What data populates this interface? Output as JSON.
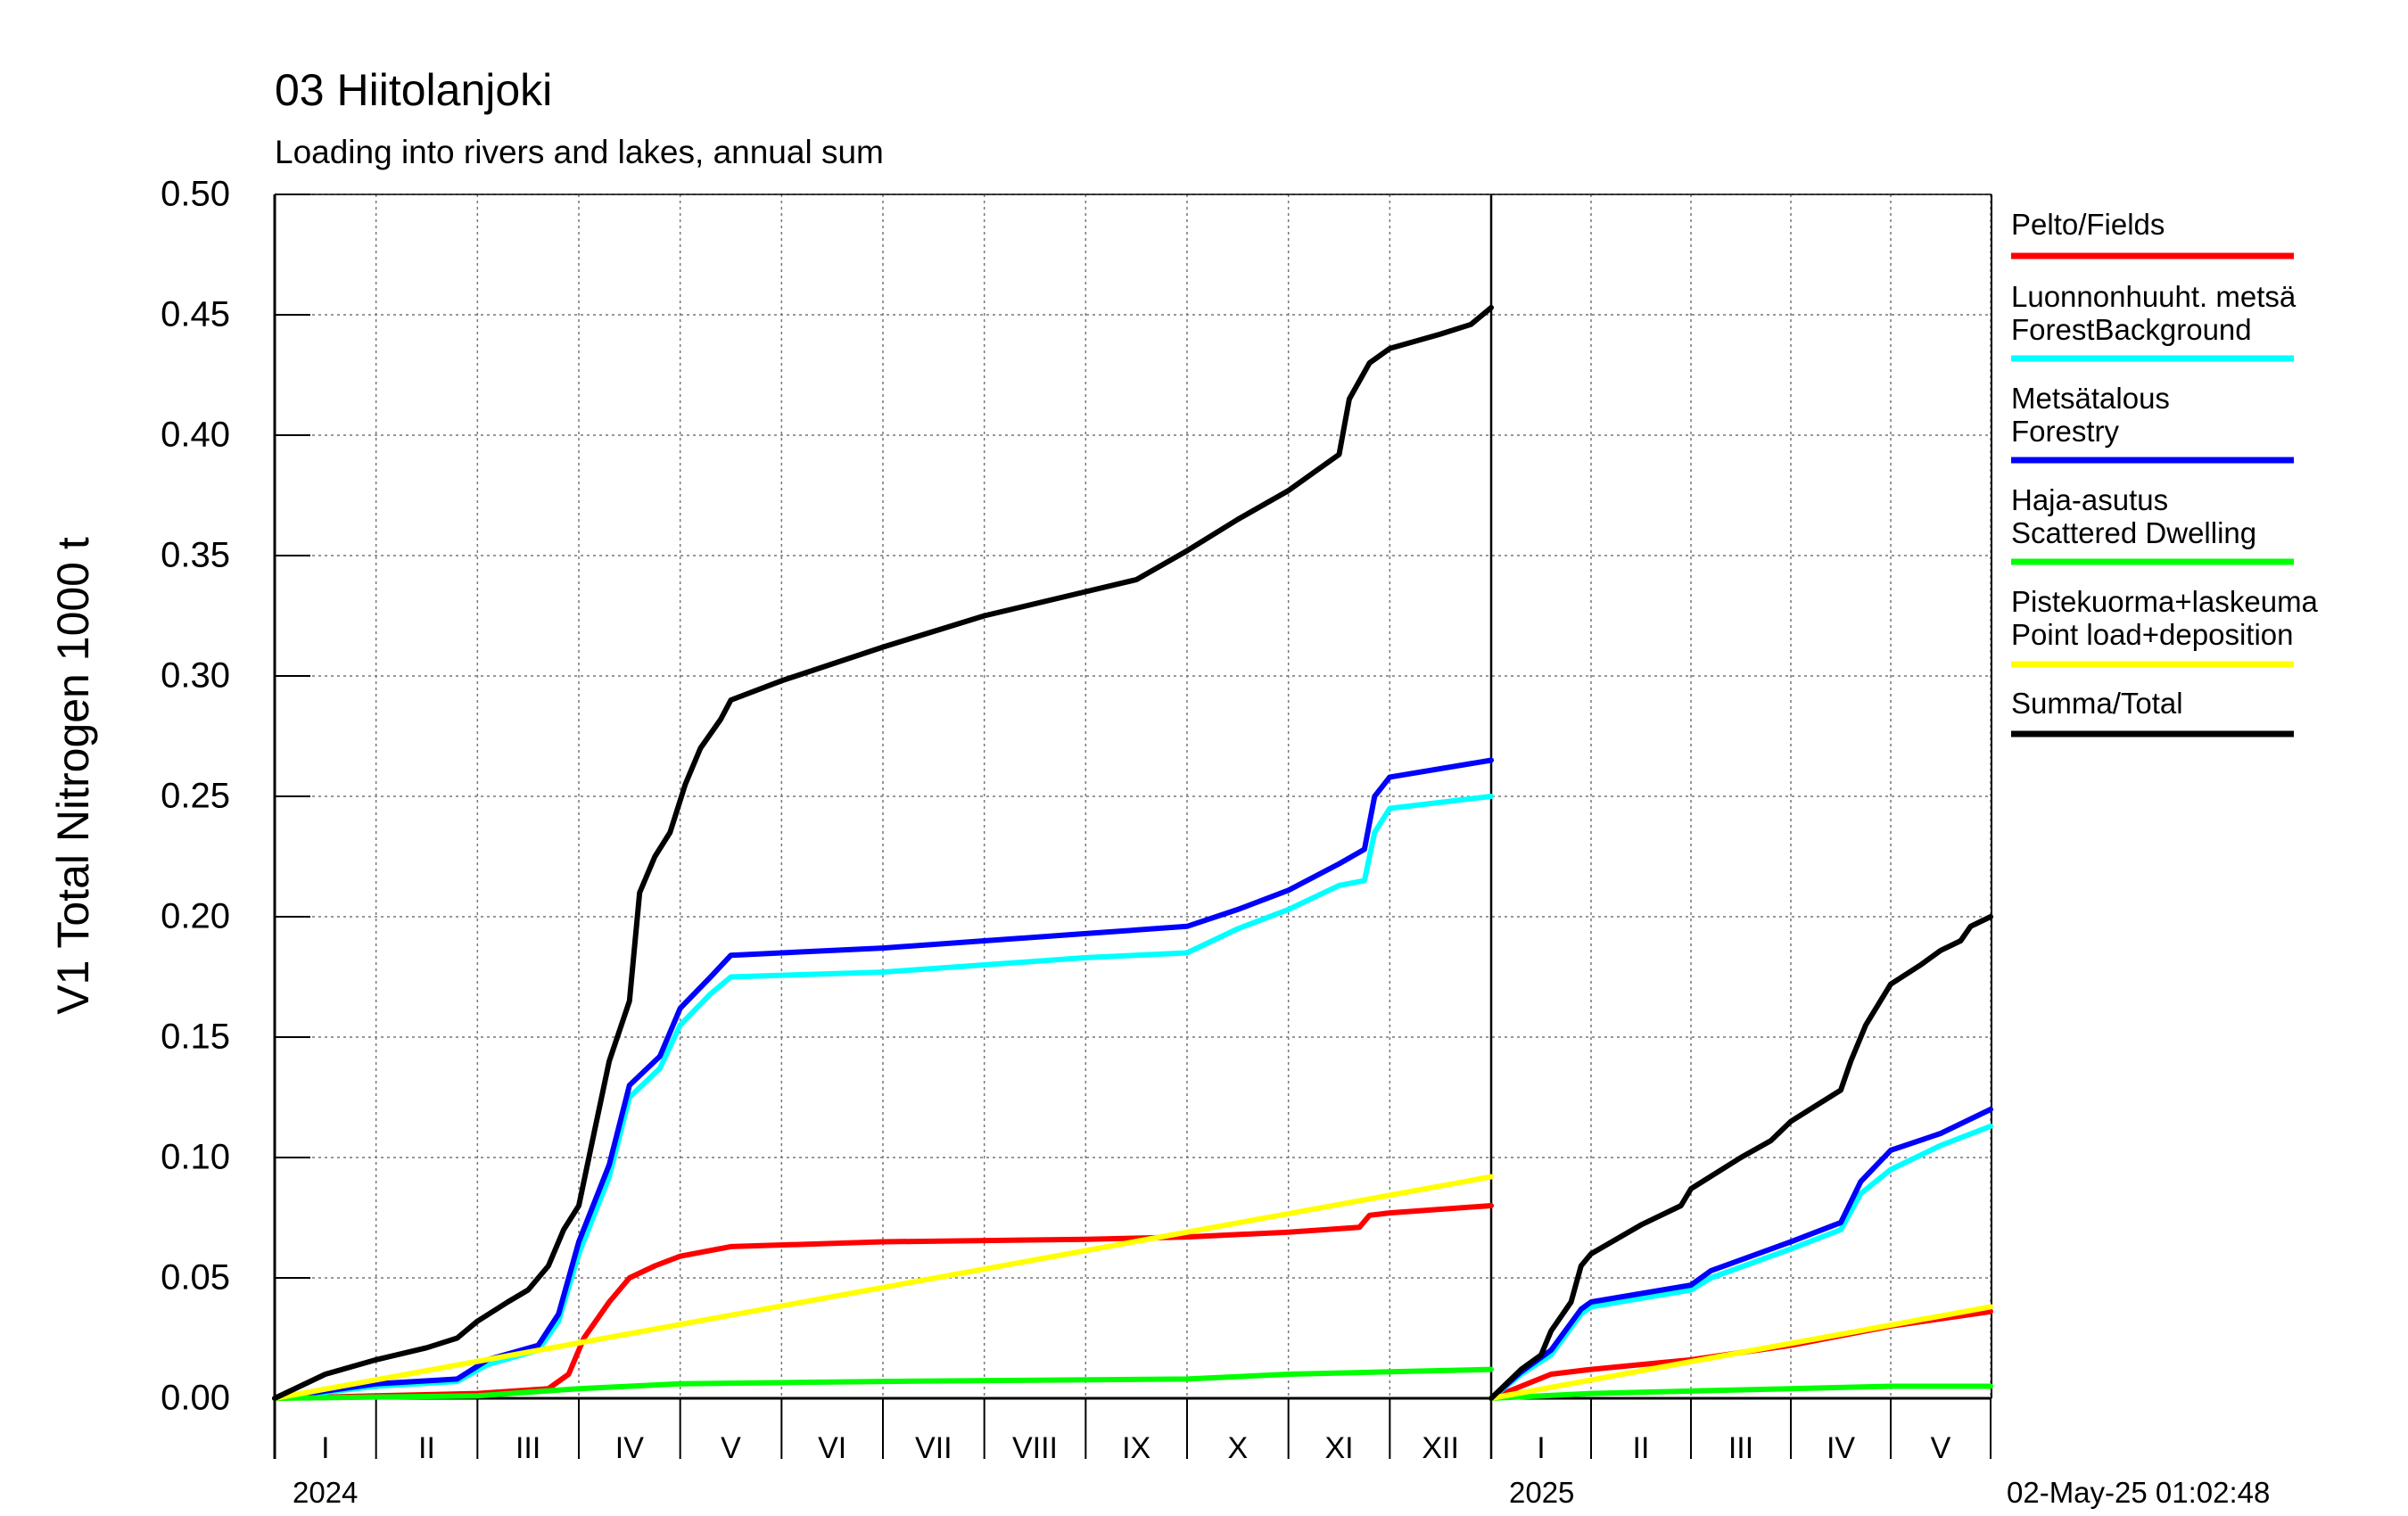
{
  "chart_data": {
    "type": "line",
    "title": "03 Hiitolanjoki",
    "subtitle": "Loading into rivers and lakes, annual sum",
    "ylabel": "V1 Total Nitrogen 1000 t",
    "ylim": [
      0,
      0.5
    ],
    "yticks": [
      "0.00",
      "0.05",
      "0.10",
      "0.15",
      "0.20",
      "0.25",
      "0.30",
      "0.35",
      "0.40",
      "0.45",
      "0.50"
    ],
    "grid": true,
    "legend_position": "right",
    "timestamp": "02-May-25 01:02:48",
    "periods": [
      {
        "year": "2024",
        "months": [
          "I",
          "II",
          "III",
          "IV",
          "V",
          "VI",
          "VII",
          "VIII",
          "IX",
          "X",
          "XI",
          "XII"
        ],
        "x": [
          0,
          1,
          2,
          3,
          4,
          5,
          6,
          7,
          8,
          9,
          10,
          11,
          12
        ]
      },
      {
        "year": "2025",
        "months": [
          "I",
          "II",
          "III",
          "IV",
          "V"
        ],
        "x": [
          0,
          1,
          2,
          3,
          4,
          5
        ]
      }
    ],
    "series": [
      {
        "name": "Pelto/Fields",
        "color": "#ff0000",
        "p1": [
          [
            0,
            0
          ],
          [
            1,
            0.001
          ],
          [
            2,
            0.002
          ],
          [
            2.7,
            0.004
          ],
          [
            2.9,
            0.01
          ],
          [
            3.05,
            0.025
          ],
          [
            3.3,
            0.04
          ],
          [
            3.5,
            0.05
          ],
          [
            3.75,
            0.055
          ],
          [
            4,
            0.059
          ],
          [
            4.5,
            0.063
          ],
          [
            6,
            0.065
          ],
          [
            8,
            0.066
          ],
          [
            9,
            0.067
          ],
          [
            10,
            0.069
          ],
          [
            10.7,
            0.071
          ],
          [
            10.8,
            0.076
          ],
          [
            11,
            0.077
          ],
          [
            12,
            0.08
          ]
        ],
        "p2": [
          [
            0,
            0
          ],
          [
            0.6,
            0.01
          ],
          [
            1,
            0.012
          ],
          [
            2,
            0.016
          ],
          [
            3,
            0.022
          ],
          [
            3.5,
            0.026
          ],
          [
            4,
            0.03
          ],
          [
            5,
            0.036
          ]
        ]
      },
      {
        "name": "Luonnonhuuht. metsä ForestBackground",
        "color": "#00ffff",
        "p1": [
          [
            0,
            0
          ],
          [
            1,
            0.005
          ],
          [
            1.8,
            0.007
          ],
          [
            2.1,
            0.014
          ],
          [
            2.6,
            0.02
          ],
          [
            2.8,
            0.032
          ],
          [
            3,
            0.06
          ],
          [
            3.3,
            0.092
          ],
          [
            3.5,
            0.125
          ],
          [
            3.8,
            0.137
          ],
          [
            4,
            0.155
          ],
          [
            4.3,
            0.168
          ],
          [
            4.5,
            0.175
          ],
          [
            6,
            0.177
          ],
          [
            7,
            0.18
          ],
          [
            8,
            0.183
          ],
          [
            9,
            0.185
          ],
          [
            9.5,
            0.195
          ],
          [
            10,
            0.203
          ],
          [
            10.5,
            0.213
          ],
          [
            10.75,
            0.215
          ],
          [
            10.85,
            0.235
          ],
          [
            11,
            0.245
          ],
          [
            12,
            0.25
          ]
        ],
        "p2": [
          [
            0,
            0
          ],
          [
            0.3,
            0.01
          ],
          [
            0.6,
            0.018
          ],
          [
            0.9,
            0.035
          ],
          [
            1,
            0.038
          ],
          [
            2,
            0.045
          ],
          [
            2.2,
            0.05
          ],
          [
            3,
            0.062
          ],
          [
            3.5,
            0.07
          ],
          [
            3.7,
            0.085
          ],
          [
            4,
            0.095
          ],
          [
            4.5,
            0.105
          ],
          [
            5,
            0.113
          ]
        ]
      },
      {
        "name": "Metsätalous Forestry",
        "color": "#0000ff",
        "p1": [
          [
            0,
            0
          ],
          [
            1,
            0.006
          ],
          [
            1.8,
            0.008
          ],
          [
            2.1,
            0.016
          ],
          [
            2.6,
            0.022
          ],
          [
            2.8,
            0.035
          ],
          [
            3,
            0.065
          ],
          [
            3.3,
            0.097
          ],
          [
            3.5,
            0.13
          ],
          [
            3.8,
            0.142
          ],
          [
            4,
            0.162
          ],
          [
            4.3,
            0.175
          ],
          [
            4.5,
            0.184
          ],
          [
            6,
            0.187
          ],
          [
            7,
            0.19
          ],
          [
            8,
            0.193
          ],
          [
            9,
            0.196
          ],
          [
            9.5,
            0.203
          ],
          [
            10,
            0.211
          ],
          [
            10.5,
            0.222
          ],
          [
            10.75,
            0.228
          ],
          [
            10.85,
            0.25
          ],
          [
            11,
            0.258
          ],
          [
            12,
            0.265
          ]
        ],
        "p2": [
          [
            0,
            0
          ],
          [
            0.3,
            0.011
          ],
          [
            0.6,
            0.02
          ],
          [
            0.9,
            0.037
          ],
          [
            1,
            0.04
          ],
          [
            2,
            0.047
          ],
          [
            2.2,
            0.053
          ],
          [
            3,
            0.065
          ],
          [
            3.5,
            0.073
          ],
          [
            3.7,
            0.09
          ],
          [
            4,
            0.103
          ],
          [
            4.5,
            0.11
          ],
          [
            5,
            0.12
          ]
        ]
      },
      {
        "name": "Haja-asutus Scattered Dwelling",
        "color": "#00ff00",
        "p1": [
          [
            0,
            0
          ],
          [
            2,
            0.001
          ],
          [
            3,
            0.004
          ],
          [
            4,
            0.006
          ],
          [
            6,
            0.007
          ],
          [
            9,
            0.008
          ],
          [
            10,
            0.01
          ],
          [
            11,
            0.011
          ],
          [
            12,
            0.012
          ]
        ],
        "p2": [
          [
            0,
            0
          ],
          [
            1,
            0.002
          ],
          [
            2,
            0.003
          ],
          [
            3,
            0.004
          ],
          [
            4,
            0.005
          ],
          [
            5,
            0.005
          ]
        ]
      },
      {
        "name": "Pistekuorma+laskeuma Point load+deposition",
        "color": "#ffff00",
        "p1": [
          [
            0,
            0
          ],
          [
            12,
            0.092
          ]
        ],
        "p2": [
          [
            0,
            0
          ],
          [
            5,
            0.038
          ]
        ]
      },
      {
        "name": "Summa/Total",
        "color": "#000000",
        "p1": [
          [
            0,
            0
          ],
          [
            0.5,
            0.01
          ],
          [
            1,
            0.016
          ],
          [
            1.5,
            0.021
          ],
          [
            1.8,
            0.025
          ],
          [
            2,
            0.032
          ],
          [
            2.3,
            0.04
          ],
          [
            2.5,
            0.045
          ],
          [
            2.7,
            0.055
          ],
          [
            2.85,
            0.07
          ],
          [
            3,
            0.08
          ],
          [
            3.15,
            0.11
          ],
          [
            3.3,
            0.14
          ],
          [
            3.5,
            0.165
          ],
          [
            3.6,
            0.21
          ],
          [
            3.75,
            0.225
          ],
          [
            3.9,
            0.235
          ],
          [
            4.05,
            0.255
          ],
          [
            4.2,
            0.27
          ],
          [
            4.4,
            0.282
          ],
          [
            4.5,
            0.29
          ],
          [
            5,
            0.298
          ],
          [
            6,
            0.312
          ],
          [
            7,
            0.325
          ],
          [
            8,
            0.335
          ],
          [
            8.5,
            0.34
          ],
          [
            9,
            0.352
          ],
          [
            9.5,
            0.365
          ],
          [
            10,
            0.377
          ],
          [
            10.5,
            0.392
          ],
          [
            10.6,
            0.415
          ],
          [
            10.8,
            0.43
          ],
          [
            11,
            0.436
          ],
          [
            11.5,
            0.442
          ],
          [
            11.8,
            0.446
          ],
          [
            12,
            0.453
          ]
        ],
        "p2": [
          [
            0,
            0
          ],
          [
            0.3,
            0.012
          ],
          [
            0.5,
            0.018
          ],
          [
            0.6,
            0.028
          ],
          [
            0.8,
            0.04
          ],
          [
            0.9,
            0.055
          ],
          [
            1,
            0.06
          ],
          [
            1.5,
            0.072
          ],
          [
            1.9,
            0.08
          ],
          [
            2,
            0.087
          ],
          [
            2.5,
            0.1
          ],
          [
            2.8,
            0.107
          ],
          [
            3,
            0.115
          ],
          [
            3.5,
            0.128
          ],
          [
            3.6,
            0.14
          ],
          [
            3.75,
            0.155
          ],
          [
            4,
            0.172
          ],
          [
            4.3,
            0.18
          ],
          [
            4.5,
            0.186
          ],
          [
            4.7,
            0.19
          ],
          [
            4.8,
            0.196
          ],
          [
            5,
            0.2
          ]
        ]
      }
    ]
  }
}
